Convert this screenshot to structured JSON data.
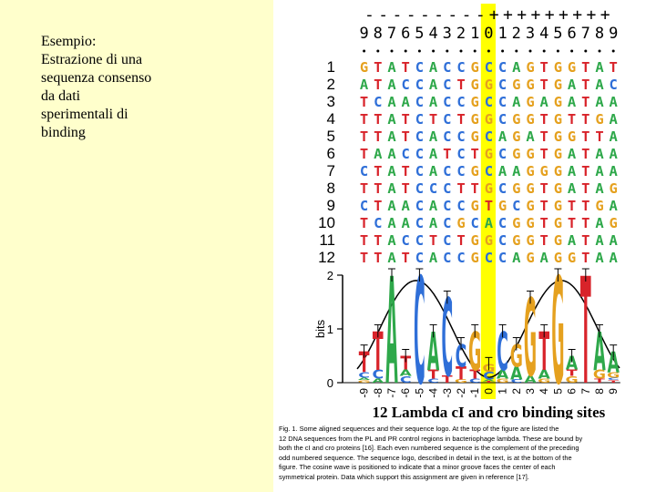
{
  "slide": {
    "lines": [
      "Esempio:",
      "Estrazione di una",
      "sequenza consenso",
      "da dati",
      "sperimentali di",
      "binding"
    ]
  },
  "figure": {
    "sign_row": "---------+++++++++",
    "position_labels": [
      "9",
      "8",
      "7",
      "6",
      "5",
      "4",
      "3",
      "2",
      "1",
      "0",
      "1",
      "2",
      "3",
      "4",
      "5",
      "6",
      "7",
      "8",
      "9"
    ],
    "row_numbers": [
      "1",
      "2",
      "3",
      "4",
      "5",
      "6",
      "7",
      "8",
      "9",
      "10",
      "11",
      "12"
    ],
    "sequences": [
      "GTATCACCGCCAGTGGTAT",
      "ATACCACTGGCGGTGATAC",
      "TCAACACCGCCAGAGATAA",
      "TTATCTCTGGCGGTGTTGA",
      "TTATCACCGCAGATGGTTA",
      "TAACCATCTGCGGTGATAA",
      "CTATCACCGCAAGGGATAA",
      "TTATCCCTTGCGGTGATAG",
      "CTAACACCGTGCGTGTTGA",
      "TCAACACGCACGGTGTTAG",
      "TTACCTCTGGCGGTGATAA",
      "TTATCACCGCCAGAGGTAA"
    ],
    "logo": {
      "y_axis_label": "bits",
      "y_ticks": [
        "0",
        "1",
        "2"
      ],
      "x_labels": [
        "-9",
        "-8",
        "-7",
        "-6",
        "-5",
        "-4",
        "-3",
        "-2",
        "-1",
        "0",
        "1",
        "2",
        "3",
        "4",
        "5",
        "6",
        "7",
        "8",
        "9"
      ],
      "title": "12 Lambda cI and cro binding sites"
    },
    "base_colors": {
      "A": "#2ea84a",
      "C": "#2f6fd8",
      "G": "#e5a11f",
      "T": "#d8232a"
    },
    "highlight_color": "#ffff00",
    "caption_lines": [
      "Fig. 1.  Some aligned sequences and their sequence logo.  At the top of the figure are listed the",
      "12 DNA sequences from the PL and PR control regions in bacteriophage lambda.  These are bound by",
      "both the cI and cro proteins [16].  Each even numbered sequence is the complement of the preceding",
      "odd numbered sequence.  The sequence logo, described in detail in the text, is at the bottom of the",
      "figure.  The cosine wave is positioned to indicate that a minor groove faces the center of each",
      "symmetrical protein.  Data which support this assignment are given in reference [17]."
    ]
  }
}
